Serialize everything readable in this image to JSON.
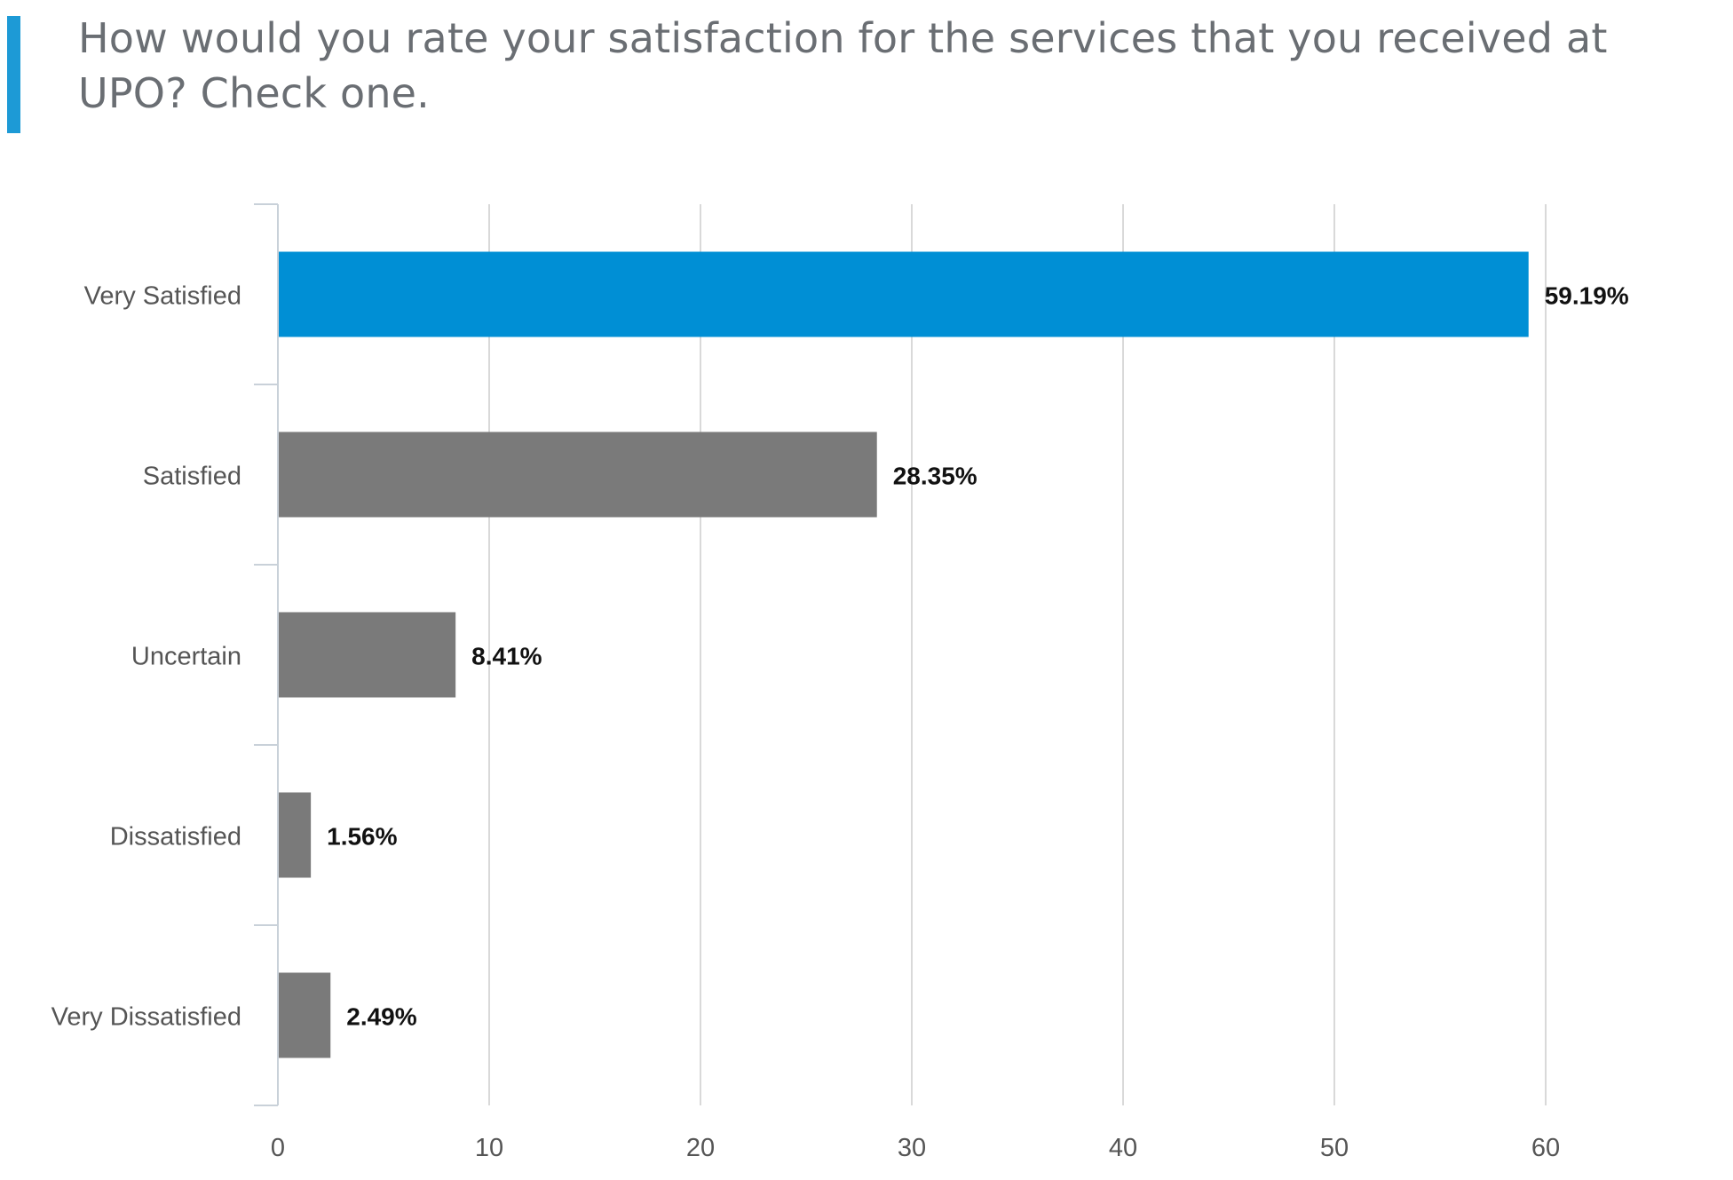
{
  "question": {
    "title": "How would you rate your satisfaction for the services that you received at UPO? Check one."
  },
  "colors": {
    "accent": "#1d9ad6",
    "highlight_bar": "#008fd5",
    "bar": "#7a7a7a",
    "gridline": "#d9d9d9",
    "axis": "#c9d1d9"
  },
  "chart_data": {
    "type": "bar",
    "orientation": "horizontal",
    "title": "How would you rate your satisfaction for the services that you received at UPO? Check one.",
    "categories": [
      "Very Satisfied",
      "Satisfied",
      "Uncertain",
      "Dissatisfied",
      "Very Dissatisfied"
    ],
    "values": [
      59.19,
      28.35,
      8.41,
      1.56,
      2.49
    ],
    "value_labels": [
      "59.19%",
      "28.35%",
      "8.41%",
      "1.56%",
      "2.49%"
    ],
    "highlight_index": 0,
    "xlim": [
      0,
      60
    ],
    "xticks": [
      0,
      10,
      20,
      30,
      40,
      50,
      60
    ],
    "xlabel": "",
    "ylabel": "",
    "grid": true,
    "legend": "none"
  }
}
